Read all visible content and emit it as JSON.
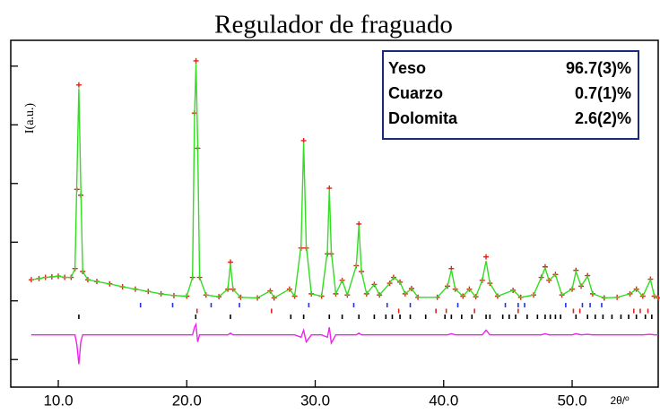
{
  "chart_data": {
    "type": "xrd",
    "title": "Regulador de fraguado",
    "x_label": "2θ/º",
    "y_label": "I(a.u.)",
    "xlim": [
      6.3,
      56.7
    ],
    "ylim": [
      -1.47,
      4.44
    ],
    "xticks": [
      {
        "value": 10,
        "label": "10.0"
      },
      {
        "value": 20,
        "label": "20.0"
      },
      {
        "value": 30,
        "label": "30.0"
      },
      {
        "value": 40,
        "label": "40.0"
      },
      {
        "value": 50,
        "label": "50.0"
      }
    ],
    "yticks": [
      -1,
      0,
      1,
      2,
      3,
      4
    ],
    "x": [
      7.9,
      8.5,
      9.0,
      9.5,
      10.0,
      10.5,
      11.0,
      11.3,
      11.45,
      11.6,
      11.75,
      11.9,
      12.3,
      13.0,
      14.0,
      15.0,
      16.0,
      17.0,
      18.0,
      19.0,
      20.0,
      20.45,
      20.6,
      20.72,
      20.85,
      21.0,
      21.5,
      22.5,
      23.2,
      23.4,
      23.6,
      24.2,
      25.5,
      26.5,
      26.8,
      28.0,
      28.4,
      28.9,
      29.1,
      29.3,
      29.7,
      30.5,
      30.95,
      31.1,
      31.25,
      31.6,
      32.1,
      32.5,
      33.2,
      33.4,
      33.6,
      34.0,
      34.6,
      35.0,
      35.8,
      36.1,
      36.6,
      37.0,
      37.5,
      38.0,
      39.5,
      40.3,
      40.6,
      40.9,
      41.5,
      42.0,
      42.5,
      43.0,
      43.3,
      43.6,
      44.2,
      45.4,
      46.0,
      47.0,
      47.6,
      47.9,
      48.2,
      48.7,
      49.2,
      50.0,
      50.3,
      50.7,
      51.2,
      51.6,
      52.5,
      53.5,
      54.5,
      55.0,
      55.5,
      56.1,
      56.4,
      56.7
    ],
    "series": [
      {
        "color": "#e0201a",
        "style": "cross",
        "values": [
          0.36,
          0.38,
          0.4,
          0.41,
          0.42,
          0.4,
          0.4,
          0.55,
          1.9,
          3.68,
          1.8,
          0.5,
          0.36,
          0.33,
          0.29,
          0.24,
          0.2,
          0.16,
          0.12,
          0.09,
          0.08,
          0.4,
          3.2,
          4.09,
          2.6,
          0.4,
          0.1,
          0.07,
          0.2,
          0.66,
          0.2,
          0.06,
          0.05,
          0.17,
          0.05,
          0.2,
          0.08,
          0.9,
          2.73,
          0.9,
          0.12,
          0.08,
          0.8,
          1.92,
          0.8,
          0.12,
          0.35,
          0.1,
          0.6,
          1.31,
          0.5,
          0.12,
          0.28,
          0.1,
          0.3,
          0.4,
          0.32,
          0.12,
          0.21,
          0.06,
          0.06,
          0.25,
          0.55,
          0.2,
          0.08,
          0.2,
          0.07,
          0.35,
          0.75,
          0.3,
          0.08,
          0.18,
          0.06,
          0.1,
          0.4,
          0.58,
          0.35,
          0.45,
          0.1,
          0.2,
          0.52,
          0.25,
          0.43,
          0.12,
          0.05,
          0.06,
          0.12,
          0.2,
          0.08,
          0.37,
          0.08,
          0.05
        ]
      },
      {
        "color": "#33dd22",
        "style": "line",
        "values": [
          0.36,
          0.38,
          0.4,
          0.41,
          0.42,
          0.4,
          0.4,
          0.55,
          2.1,
          3.62,
          1.95,
          0.5,
          0.36,
          0.33,
          0.29,
          0.24,
          0.2,
          0.16,
          0.12,
          0.09,
          0.08,
          0.4,
          3.1,
          4.05,
          2.7,
          0.4,
          0.1,
          0.07,
          0.2,
          0.63,
          0.2,
          0.06,
          0.05,
          0.17,
          0.05,
          0.2,
          0.08,
          0.95,
          2.7,
          0.95,
          0.12,
          0.08,
          0.85,
          1.9,
          0.85,
          0.12,
          0.35,
          0.1,
          0.6,
          1.28,
          0.5,
          0.12,
          0.28,
          0.1,
          0.3,
          0.4,
          0.32,
          0.12,
          0.21,
          0.06,
          0.06,
          0.25,
          0.53,
          0.2,
          0.08,
          0.2,
          0.07,
          0.35,
          0.68,
          0.3,
          0.08,
          0.18,
          0.06,
          0.1,
          0.4,
          0.56,
          0.35,
          0.45,
          0.1,
          0.2,
          0.5,
          0.25,
          0.42,
          0.12,
          0.05,
          0.06,
          0.12,
          0.2,
          0.08,
          0.36,
          0.08,
          0.05
        ]
      },
      {
        "color": "#ee22ee",
        "style": "line",
        "values": [
          -0.58,
          -0.58,
          -0.58,
          -0.58,
          -0.58,
          -0.58,
          -0.58,
          -0.58,
          -0.75,
          -1.08,
          -0.7,
          -0.58,
          -0.58,
          -0.58,
          -0.58,
          -0.58,
          -0.58,
          -0.58,
          -0.58,
          -0.58,
          -0.58,
          -0.58,
          -0.45,
          -0.4,
          -0.7,
          -0.58,
          -0.58,
          -0.58,
          -0.58,
          -0.55,
          -0.58,
          -0.58,
          -0.58,
          -0.58,
          -0.58,
          -0.58,
          -0.58,
          -0.62,
          -0.5,
          -0.7,
          -0.58,
          -0.58,
          -0.62,
          -0.45,
          -0.72,
          -0.58,
          -0.58,
          -0.58,
          -0.58,
          -0.55,
          -0.58,
          -0.58,
          -0.58,
          -0.58,
          -0.58,
          -0.58,
          -0.58,
          -0.58,
          -0.58,
          -0.58,
          -0.58,
          -0.58,
          -0.56,
          -0.58,
          -0.58,
          -0.58,
          -0.58,
          -0.58,
          -0.5,
          -0.58,
          -0.58,
          -0.58,
          -0.58,
          -0.58,
          -0.58,
          -0.56,
          -0.58,
          -0.58,
          -0.58,
          -0.58,
          -0.56,
          -0.58,
          -0.57,
          -0.58,
          -0.58,
          -0.58,
          -0.58,
          -0.58,
          -0.58,
          -0.57,
          -0.58,
          -0.58
        ]
      }
    ],
    "reflections": [
      {
        "color": "#2233dd",
        "x": [
          16.4,
          18.9,
          21.9,
          24.1,
          29.5,
          33.0,
          35.6,
          37.4,
          41.1,
          44.8,
          45.8,
          46.3,
          49.5,
          50.8,
          51.4,
          52.3
        ]
      },
      {
        "color": "#e0201a",
        "x": [
          20.8,
          26.6,
          36.5,
          39.4,
          40.2,
          42.4,
          45.8,
          50.1,
          50.6,
          54.8,
          55.3,
          55.9
        ]
      },
      {
        "color": "#000000",
        "x": [
          11.6,
          20.7,
          23.4,
          28.1,
          29.1,
          31.1,
          32.1,
          33.4,
          34.6,
          35.5,
          36.0,
          36.6,
          37.4,
          38.6,
          40.1,
          40.6,
          41.4,
          42.2,
          43.3,
          43.6,
          44.6,
          45.1,
          45.6,
          46.5,
          47.3,
          47.9,
          48.3,
          48.7,
          49.1,
          50.3,
          51.2,
          51.8,
          52.4,
          53.1,
          53.8,
          54.4,
          55.0,
          55.7,
          56.2
        ]
      }
    ],
    "phases": [
      {
        "name": "Yeso",
        "fraction": "96.7(3)%"
      },
      {
        "name": "Cuarzo",
        "fraction": "0.7(1)%"
      },
      {
        "name": "Dolomita",
        "fraction": "2.6(2)%"
      }
    ]
  }
}
